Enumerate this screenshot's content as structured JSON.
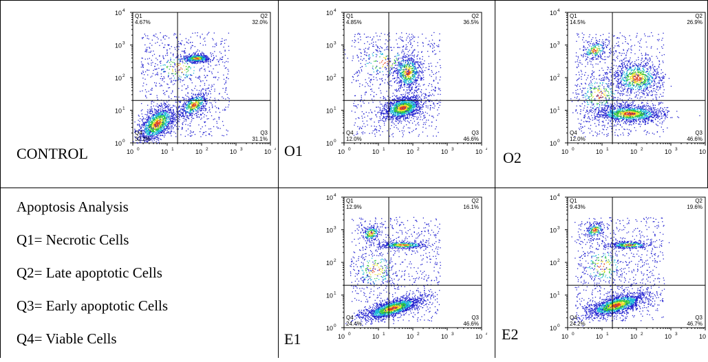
{
  "legend": {
    "title": "Apoptosis Analysis",
    "items": [
      "Q1= Necrotic Cells",
      "Q2= Late apoptotic Cells",
      "Q3= Early apoptotic Cells",
      "Q4= Viable Cells"
    ]
  },
  "colors": {
    "density_low": "#1e1ecf",
    "density_mid": "#19b8d6",
    "density_high": "#31c43c",
    "density_peak": "#f0e02a",
    "density_max": "#e0421c",
    "gate_line": "#000000"
  },
  "chart_data": [
    {
      "type": "scatter",
      "name": "CONTROL",
      "x_ticks": [
        "10",
        "10",
        "10",
        "10",
        "10"
      ],
      "x_tick_exponents": [
        "0",
        "1",
        "2",
        "3",
        "4"
      ],
      "y_ticks": [
        "10",
        "10",
        "10",
        "10",
        "10"
      ],
      "y_tick_exponents": [
        "0",
        "1",
        "2",
        "3",
        "4"
      ],
      "xlim": [
        1,
        10000
      ],
      "ylim": [
        1,
        10000
      ],
      "log_scale": true,
      "gate": [
        20,
        20
      ],
      "quadrants": {
        "Q1": {
          "label": "Q1",
          "value": "4.67%"
        },
        "Q2": {
          "label": "Q2",
          "value": "32.0%"
        },
        "Q3": {
          "label": "Q3",
          "value": "31.1%"
        },
        "Q4": {
          "label": "Q4",
          "value": "32.2%"
        }
      },
      "clusters": [
        {
          "x": 5,
          "y": 4,
          "sx": 0.35,
          "sy": 0.35,
          "n": 1300,
          "rot": 0.8
        },
        {
          "x": 60,
          "y": 15,
          "sx": 0.25,
          "sy": 0.25,
          "n": 500,
          "rot": 0.7
        },
        {
          "x": 70,
          "y": 400,
          "sx": 0.2,
          "sy": 0.12,
          "n": 500,
          "rot": 0
        },
        {
          "x": 20,
          "y": 200,
          "sx": 0.4,
          "sy": 0.5,
          "n": 150,
          "rot": 0
        }
      ]
    },
    {
      "type": "scatter",
      "name": "O1",
      "x_ticks": [
        "10",
        "10",
        "10",
        "10",
        "10"
      ],
      "x_tick_exponents": [
        "0",
        "1",
        "2",
        "3",
        "4"
      ],
      "y_ticks": [
        "10",
        "10",
        "10",
        "10",
        "10"
      ],
      "y_tick_exponents": [
        "0",
        "1",
        "2",
        "3",
        "4"
      ],
      "xlim": [
        1,
        10000
      ],
      "ylim": [
        1,
        10000
      ],
      "log_scale": true,
      "gate": [
        20,
        20
      ],
      "quadrants": {
        "Q1": {
          "label": "Q1",
          "value": "4.85%"
        },
        "Q2": {
          "label": "Q2",
          "value": "36.5%"
        },
        "Q3": {
          "label": "Q3",
          "value": "46.6%"
        },
        "Q4": {
          "label": "Q4",
          "value": "12.0%"
        }
      },
      "clusters": [
        {
          "x": 50,
          "y": 12,
          "sx": 0.3,
          "sy": 0.3,
          "n": 1300,
          "rot": 0.3
        },
        {
          "x": 70,
          "y": 150,
          "sx": 0.2,
          "sy": 0.5,
          "n": 700,
          "rot": 0
        },
        {
          "x": 15,
          "y": 300,
          "sx": 0.45,
          "sy": 0.5,
          "n": 150,
          "rot": 0
        }
      ]
    },
    {
      "type": "scatter",
      "name": "O2",
      "x_ticks": [
        "10",
        "10",
        "10",
        "10",
        "10"
      ],
      "x_tick_exponents": [
        "0",
        "1",
        "2",
        "3",
        "4"
      ],
      "y_ticks": [
        "10",
        "10",
        "10",
        "10",
        "10"
      ],
      "y_tick_exponents": [
        "0",
        "1",
        "2",
        "3",
        "4"
      ],
      "xlim": [
        1,
        10000
      ],
      "ylim": [
        1,
        10000
      ],
      "log_scale": true,
      "gate": [
        20,
        20
      ],
      "quadrants": {
        "Q1": {
          "label": "Q1",
          "value": "14.5%"
        },
        "Q2": {
          "label": "Q2",
          "value": "26.9%"
        },
        "Q3": {
          "label": "Q3",
          "value": "46.6%"
        },
        "Q4": {
          "label": "Q4",
          "value": "12.0%"
        }
      },
      "clusters": [
        {
          "x": 60,
          "y": 8,
          "sx": 0.5,
          "sy": 0.25,
          "n": 1300,
          "rot": 0
        },
        {
          "x": 100,
          "y": 100,
          "sx": 0.35,
          "sy": 0.5,
          "n": 800,
          "rot": 0
        },
        {
          "x": 6,
          "y": 700,
          "sx": 0.2,
          "sy": 0.25,
          "n": 200,
          "rot": 0.5
        },
        {
          "x": 8,
          "y": 30,
          "sx": 0.35,
          "sy": 0.6,
          "n": 250,
          "rot": 0
        }
      ]
    },
    {
      "type": "scatter",
      "name": "E1",
      "x_ticks": [
        "10",
        "10",
        "10",
        "10",
        "10"
      ],
      "x_tick_exponents": [
        "0",
        "1",
        "2",
        "3",
        "4"
      ],
      "y_ticks": [
        "10",
        "10",
        "10",
        "10",
        "10"
      ],
      "y_tick_exponents": [
        "0",
        "1",
        "2",
        "3",
        "4"
      ],
      "xlim": [
        1,
        10000
      ],
      "ylim": [
        1,
        10000
      ],
      "log_scale": true,
      "gate": [
        20,
        20
      ],
      "quadrants": {
        "Q1": {
          "label": "Q1",
          "value": "12.9%"
        },
        "Q2": {
          "label": "Q2",
          "value": "16.1%"
        },
        "Q3": {
          "label": "Q3",
          "value": "46.6%"
        },
        "Q4": {
          "label": "Q4",
          "value": "24.4%"
        }
      },
      "clusters": [
        {
          "x": 25,
          "y": 4,
          "sx": 0.45,
          "sy": 0.22,
          "n": 1600,
          "rot": 0.3
        },
        {
          "x": 50,
          "y": 350,
          "sx": 0.35,
          "sy": 0.1,
          "n": 400,
          "rot": 0
        },
        {
          "x": 6,
          "y": 800,
          "sx": 0.15,
          "sy": 0.2,
          "n": 200,
          "rot": 0.6
        },
        {
          "x": 8,
          "y": 60,
          "sx": 0.35,
          "sy": 0.6,
          "n": 200,
          "rot": 0
        }
      ]
    },
    {
      "type": "scatter",
      "name": "E2",
      "x_ticks": [
        "10",
        "10",
        "10",
        "10",
        "10"
      ],
      "x_tick_exponents": [
        "0",
        "1",
        "2",
        "3",
        "4"
      ],
      "y_ticks": [
        "10",
        "10",
        "10",
        "10",
        "10"
      ],
      "y_tick_exponents": [
        "0",
        "1",
        "2",
        "3",
        "4"
      ],
      "xlim": [
        1,
        10000
      ],
      "ylim": [
        1,
        10000
      ],
      "log_scale": true,
      "gate": [
        20,
        20
      ],
      "quadrants": {
        "Q1": {
          "label": "Q1",
          "value": "9.43%"
        },
        "Q2": {
          "label": "Q2",
          "value": "19.6%"
        },
        "Q3": {
          "label": "Q3",
          "value": "46.7%"
        },
        "Q4": {
          "label": "Q4",
          "value": "24.2%"
        }
      },
      "clusters": [
        {
          "x": 25,
          "y": 5,
          "sx": 0.45,
          "sy": 0.25,
          "n": 1600,
          "rot": 0.3
        },
        {
          "x": 60,
          "y": 350,
          "sx": 0.3,
          "sy": 0.1,
          "n": 400,
          "rot": 0
        },
        {
          "x": 6,
          "y": 1000,
          "sx": 0.15,
          "sy": 0.2,
          "n": 200,
          "rot": 0.6
        },
        {
          "x": 10,
          "y": 80,
          "sx": 0.35,
          "sy": 0.6,
          "n": 200,
          "rot": 0
        }
      ]
    }
  ]
}
